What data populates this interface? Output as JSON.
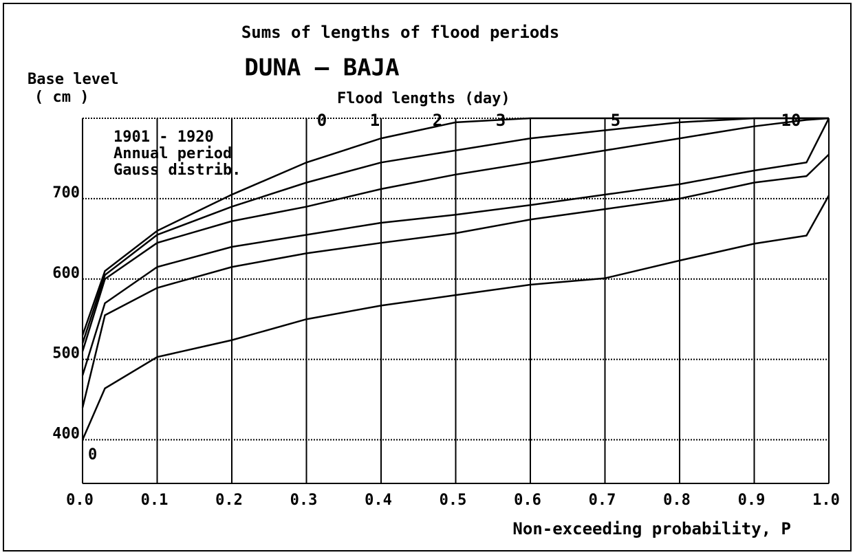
{
  "chart_data": {
    "type": "line",
    "title": "Sums of lengths of flood periods",
    "subtitle": "DUNA  –  BAJA",
    "y_label": [
      "Base level",
      "( cm )"
    ],
    "legend_title": "Flood lengths (day)",
    "annotations": [
      "1901 - 1920",
      "Annual period",
      "Gauss distrib.",
      "0"
    ],
    "x_label": "Non-exceeding probability, P",
    "x": [
      0,
      0.03,
      0.1,
      0.2,
      0.3,
      0.4,
      0.5,
      0.6,
      0.7,
      0.8,
      0.9,
      0.97,
      1.0
    ],
    "series": [
      {
        "name": "0",
        "color": "#000000",
        "values": [
          530,
          610,
          660,
          705,
          745,
          775,
          795,
          800,
          800,
          800,
          800,
          800,
          800
        ]
      },
      {
        "name": "1",
        "color": "#000000",
        "values": [
          520,
          605,
          655,
          690,
          720,
          745,
          760,
          775,
          785,
          795,
          800,
          800,
          800
        ]
      },
      {
        "name": "2",
        "color": "#000000",
        "values": [
          510,
          600,
          645,
          672,
          690,
          712,
          730,
          745,
          760,
          775,
          790,
          798,
          800
        ]
      },
      {
        "name": "3",
        "color": "#000000",
        "values": [
          480,
          570,
          615,
          640,
          655,
          670,
          680,
          692,
          705,
          718,
          735,
          745,
          800
        ]
      },
      {
        "name": "5",
        "color": "#000000",
        "values": [
          440,
          555,
          589,
          615,
          632,
          645,
          657,
          674,
          687,
          700,
          720,
          728,
          755
        ]
      },
      {
        "name": "10",
        "color": "#000000",
        "values": [
          400,
          464,
          503,
          524,
          550,
          567,
          580,
          593,
          601,
          623,
          644,
          654,
          704
        ]
      }
    ],
    "xlim": [
      0,
      1.0
    ],
    "xticks": [
      {
        "value": 0,
        "label": "0.0"
      },
      0.1,
      0.2,
      0.3,
      0.4,
      0.5,
      0.6,
      0.7,
      0.8,
      0.9,
      {
        "value": 1.0,
        "label": "1.0"
      }
    ],
    "ylim": [
      350,
      800
    ],
    "yticks": [
      400,
      500,
      600,
      700
    ],
    "grid": true
  }
}
